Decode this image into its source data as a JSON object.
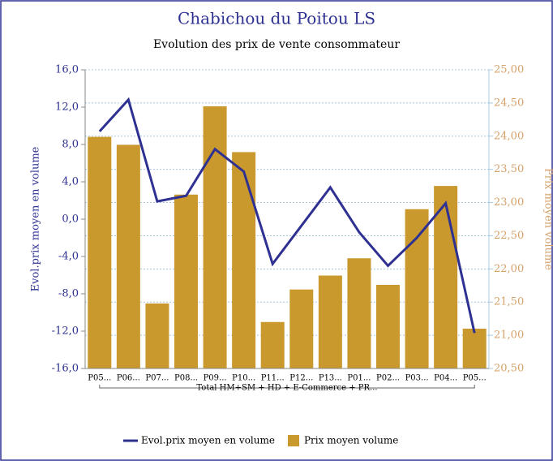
{
  "chart_data": {
    "type": "combo",
    "title": "Chabichou du Poitou LS",
    "subtitle": "Evolution des prix de vente consommateur",
    "y_label": "Evol.prix moyen en volume",
    "y2_label": "Prix moyen volume",
    "categories": [
      "P05...",
      "P06...",
      "P07...",
      "P08...",
      "P09...",
      "P10...",
      "P11...",
      "P12...",
      "P13...",
      "P01...",
      "P02...",
      "P03...",
      "P04...",
      "P05..."
    ],
    "group_label": "Total HM+SM + HD + E-Commerce + PR...",
    "series": [
      {
        "name": "Evol.prix moyen en volume",
        "type": "line",
        "color": "#2e3192",
        "values": [
          9.4,
          12.8,
          1.9,
          2.5,
          7.5,
          5.1,
          -4.8,
          -0.7,
          3.4,
          -1.4,
          -5.0,
          -2.0,
          1.7,
          -12.2
        ]
      },
      {
        "name": "Prix moyen volume",
        "type": "bar",
        "axis": "y2",
        "color": "#c9992e",
        "values": [
          23.99,
          23.87,
          21.48,
          23.12,
          24.45,
          23.76,
          21.2,
          21.69,
          21.9,
          22.16,
          21.76,
          22.9,
          23.25,
          21.1
        ]
      }
    ],
    "ylim": [
      -16,
      16
    ],
    "yticks": [
      {
        "value": -16,
        "label": "-16,0"
      },
      {
        "value": -12,
        "label": "-12,0"
      },
      {
        "value": -8,
        "label": "-8,0"
      },
      {
        "value": -4,
        "label": "-4,0"
      },
      {
        "value": 0,
        "label": "0,0"
      },
      {
        "value": 4,
        "label": "4,0"
      },
      {
        "value": 8,
        "label": "8,0"
      },
      {
        "value": 12,
        "label": "12,0"
      },
      {
        "value": 16,
        "label": "16,0"
      }
    ],
    "y2lim": [
      20.5,
      25
    ],
    "y2ticks": [
      {
        "value": 20.5,
        "label": "20,50"
      },
      {
        "value": 21,
        "label": "21,00"
      },
      {
        "value": 21.5,
        "label": "21,50"
      },
      {
        "value": 22,
        "label": "22,00"
      },
      {
        "value": 22.5,
        "label": "22,50"
      },
      {
        "value": 23,
        "label": "23,00"
      },
      {
        "value": 23.5,
        "label": "23,50"
      },
      {
        "value": 24,
        "label": "24,00"
      },
      {
        "value": 24.5,
        "label": "24,50"
      },
      {
        "value": 25,
        "label": "25,00"
      }
    ],
    "grid": true,
    "legend": "bottom"
  }
}
